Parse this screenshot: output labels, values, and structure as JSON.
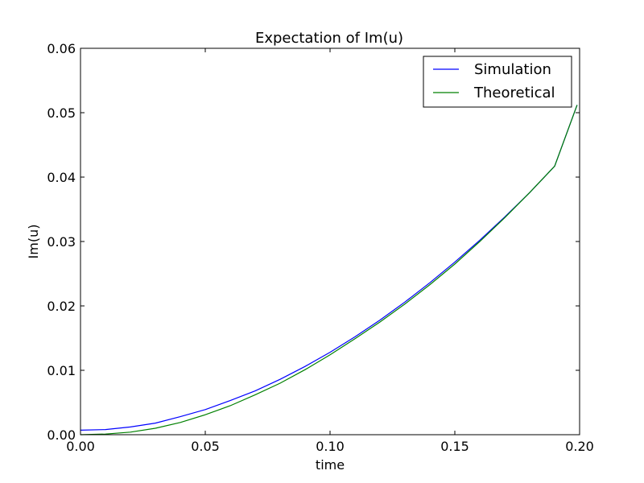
{
  "chart_data": {
    "type": "line",
    "title": "Expectation of Im(u)",
    "xlabel": "time",
    "ylabel": "Im(u)",
    "xlim": [
      0.0,
      0.2
    ],
    "ylim": [
      0.0,
      0.06
    ],
    "xticks": [
      "0.00",
      "0.05",
      "0.10",
      "0.15",
      "0.20"
    ],
    "yticks": [
      "0.00",
      "0.01",
      "0.02",
      "0.03",
      "0.04",
      "0.05",
      "0.06"
    ],
    "grid": false,
    "legend_position": "top-right",
    "series": [
      {
        "name": "Simulation",
        "color": "#0000ff",
        "x": [
          0.0,
          0.01,
          0.02,
          0.03,
          0.04,
          0.05,
          0.06,
          0.07,
          0.08,
          0.09,
          0.1,
          0.11,
          0.12,
          0.13,
          0.14,
          0.15,
          0.16,
          0.17,
          0.18,
          0.19,
          0.199
        ],
        "y": [
          0.0007,
          0.0008,
          0.0012,
          0.0018,
          0.0028,
          0.0039,
          0.0053,
          0.0068,
          0.0086,
          0.0106,
          0.0128,
          0.0152,
          0.0178,
          0.0206,
          0.0236,
          0.0268,
          0.0302,
          0.0338,
          0.0376,
          0.0417,
          0.0512
        ]
      },
      {
        "name": "Theoretical",
        "color": "#008000",
        "x": [
          0.0,
          0.01,
          0.02,
          0.03,
          0.04,
          0.05,
          0.06,
          0.07,
          0.08,
          0.09,
          0.1,
          0.11,
          0.12,
          0.13,
          0.14,
          0.15,
          0.16,
          0.17,
          0.18,
          0.19,
          0.199
        ],
        "y": [
          0.0,
          0.0001,
          0.0004,
          0.001,
          0.0019,
          0.0031,
          0.0045,
          0.0062,
          0.008,
          0.0101,
          0.0124,
          0.0149,
          0.0175,
          0.0203,
          0.0233,
          0.0265,
          0.03,
          0.0337,
          0.0376,
          0.0417,
          0.0512
        ]
      }
    ]
  }
}
